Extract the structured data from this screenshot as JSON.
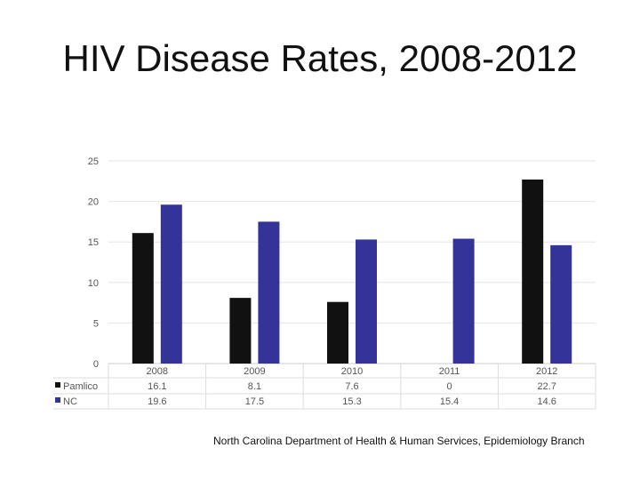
{
  "title": "HIV Disease Rates, 2008-2012",
  "source": "North Carolina Department of Health & Human Services, Epidemiology Branch",
  "chart_data": {
    "type": "bar",
    "categories": [
      "2008",
      "2009",
      "2010",
      "2011",
      "2012"
    ],
    "series": [
      {
        "name": "Pamlico",
        "values": [
          16.1,
          8.1,
          7.6,
          0,
          22.7
        ],
        "color": "#111111",
        "labels": [
          "16.1",
          "8.1",
          "7.6",
          "0",
          "22.7"
        ]
      },
      {
        "name": "NC",
        "values": [
          19.6,
          17.5,
          15.3,
          15.4,
          14.6
        ],
        "color": "#333399",
        "labels": [
          "19.6",
          "17.5",
          "15.3",
          "15.4",
          "14.6"
        ]
      }
    ],
    "yticks": [
      0,
      5,
      10,
      15,
      20,
      25
    ],
    "ylim": [
      0,
      25
    ],
    "grid": true,
    "legend": "data table below chart"
  }
}
